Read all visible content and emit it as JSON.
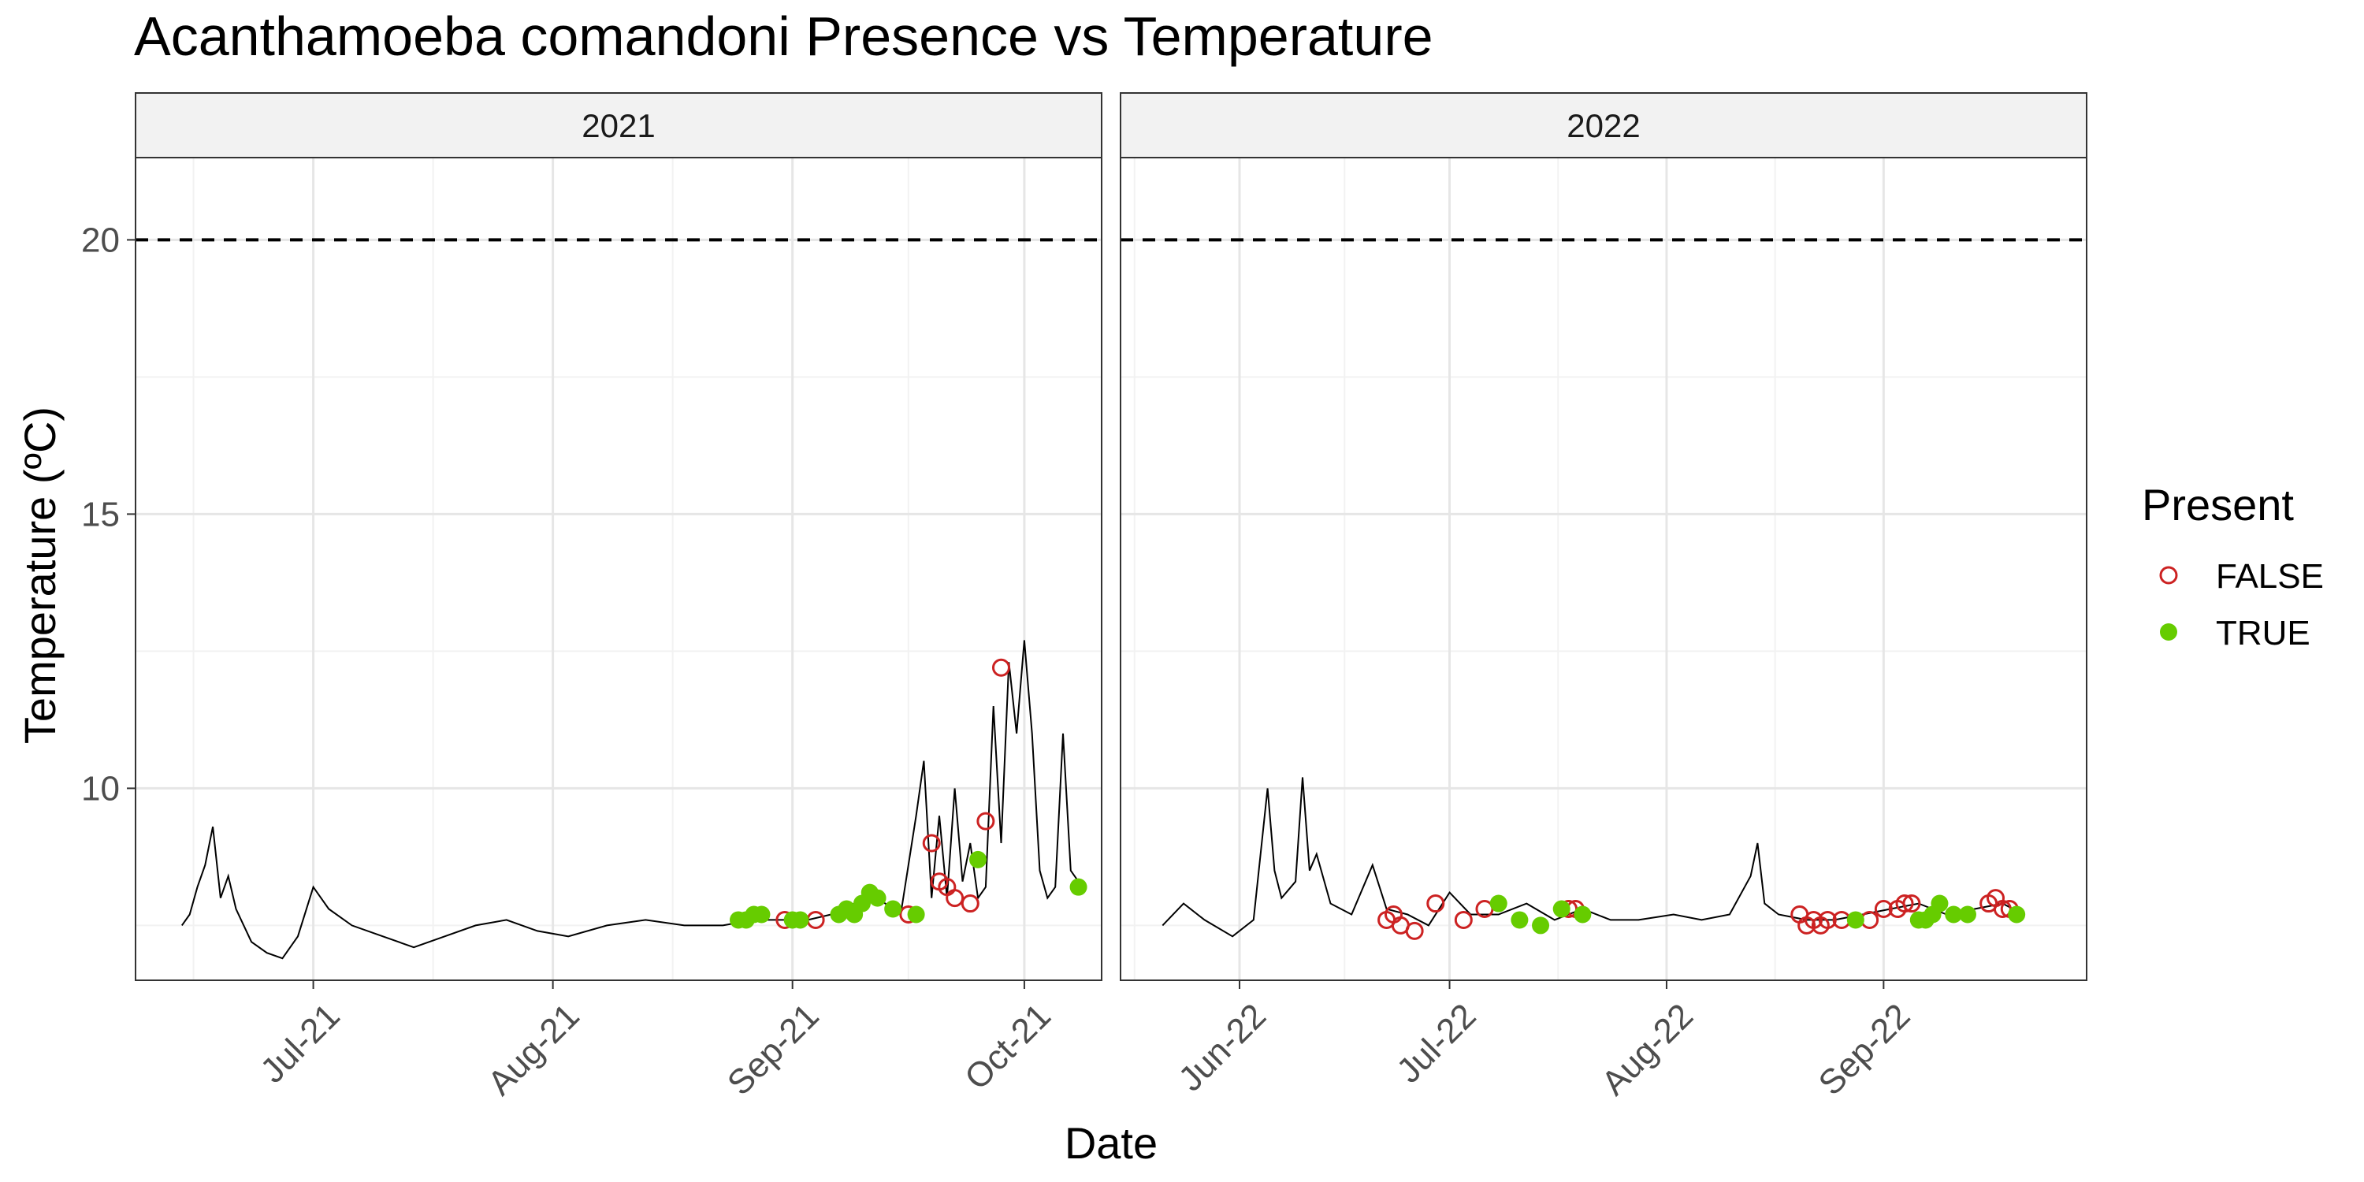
{
  "chart_data": {
    "type": "scatter",
    "title": "Acanthamoeba comandoni Presence vs Temperature",
    "xlabel": "Date",
    "ylabel": "Temperature (ºC)",
    "ylim": [
      6.5,
      21.5
    ],
    "y_ticks": [
      10,
      15,
      20
    ],
    "reference_line": {
      "y": 20,
      "style": "dashed"
    },
    "grid": true,
    "legend": {
      "title": "Present",
      "position": "right",
      "entries": [
        {
          "label": "FALSE",
          "marker": "open-circle",
          "color": "#CC2222"
        },
        {
          "label": "TRUE",
          "marker": "filled-circle",
          "color": "#66CC00"
        }
      ]
    },
    "panels": [
      {
        "facet_label": "2021",
        "xlim": [
          "2021-06-08",
          "2021-10-11"
        ],
        "x_ticks": [
          {
            "date": "2021-07-01",
            "label": "Jul-21"
          },
          {
            "date": "2021-08-01",
            "label": "Aug-21"
          },
          {
            "date": "2021-09-01",
            "label": "Sep-21"
          },
          {
            "date": "2021-10-01",
            "label": "Oct-21"
          }
        ],
        "temperature_series": [
          [
            "2021-06-14",
            7.5
          ],
          [
            "2021-06-15",
            7.7
          ],
          [
            "2021-06-16",
            8.2
          ],
          [
            "2021-06-17",
            8.6
          ],
          [
            "2021-06-18",
            9.3
          ],
          [
            "2021-06-19",
            8.0
          ],
          [
            "2021-06-20",
            8.4
          ],
          [
            "2021-06-21",
            7.8
          ],
          [
            "2021-06-22",
            7.5
          ],
          [
            "2021-06-23",
            7.2
          ],
          [
            "2021-06-25",
            7.0
          ],
          [
            "2021-06-27",
            6.9
          ],
          [
            "2021-06-29",
            7.3
          ],
          [
            "2021-07-01",
            8.2
          ],
          [
            "2021-07-03",
            7.8
          ],
          [
            "2021-07-06",
            7.5
          ],
          [
            "2021-07-10",
            7.3
          ],
          [
            "2021-07-14",
            7.1
          ],
          [
            "2021-07-18",
            7.3
          ],
          [
            "2021-07-22",
            7.5
          ],
          [
            "2021-07-26",
            7.6
          ],
          [
            "2021-07-30",
            7.4
          ],
          [
            "2021-08-03",
            7.3
          ],
          [
            "2021-08-08",
            7.5
          ],
          [
            "2021-08-13",
            7.6
          ],
          [
            "2021-08-18",
            7.5
          ],
          [
            "2021-08-23",
            7.5
          ],
          [
            "2021-08-27",
            7.6
          ],
          [
            "2021-08-31",
            7.6
          ],
          [
            "2021-09-03",
            7.6
          ],
          [
            "2021-09-06",
            7.7
          ],
          [
            "2021-09-09",
            7.9
          ],
          [
            "2021-09-12",
            8.0
          ],
          [
            "2021-09-15",
            7.7
          ],
          [
            "2021-09-17",
            9.5
          ],
          [
            "2021-09-18",
            10.5
          ],
          [
            "2021-09-19",
            8.0
          ],
          [
            "2021-09-20",
            9.5
          ],
          [
            "2021-09-21",
            8.0
          ],
          [
            "2021-09-22",
            10.0
          ],
          [
            "2021-09-23",
            8.3
          ],
          [
            "2021-09-24",
            9.0
          ],
          [
            "2021-09-25",
            8.0
          ],
          [
            "2021-09-26",
            8.2
          ],
          [
            "2021-09-27",
            11.5
          ],
          [
            "2021-09-28",
            9.0
          ],
          [
            "2021-09-29",
            12.3
          ],
          [
            "2021-09-30",
            11.0
          ],
          [
            "2021-10-01",
            12.7
          ],
          [
            "2021-10-02",
            11.0
          ],
          [
            "2021-10-03",
            8.5
          ],
          [
            "2021-10-04",
            8.0
          ],
          [
            "2021-10-05",
            8.2
          ],
          [
            "2021-10-06",
            11.0
          ],
          [
            "2021-10-07",
            8.5
          ],
          [
            "2021-10-08",
            8.3
          ]
        ],
        "points_false": [
          [
            "2021-08-31",
            7.6
          ],
          [
            "2021-09-04",
            7.6
          ],
          [
            "2021-09-16",
            7.7
          ],
          [
            "2021-09-19",
            9.0
          ],
          [
            "2021-09-20",
            8.3
          ],
          [
            "2021-09-21",
            8.2
          ],
          [
            "2021-09-22",
            8.0
          ],
          [
            "2021-09-24",
            7.9
          ],
          [
            "2021-09-26",
            9.4
          ],
          [
            "2021-09-28",
            12.2
          ]
        ],
        "points_true": [
          [
            "2021-08-25",
            7.6
          ],
          [
            "2021-08-26",
            7.6
          ],
          [
            "2021-08-27",
            7.7
          ],
          [
            "2021-08-28",
            7.7
          ],
          [
            "2021-09-01",
            7.6
          ],
          [
            "2021-09-02",
            7.6
          ],
          [
            "2021-09-07",
            7.7
          ],
          [
            "2021-09-08",
            7.8
          ],
          [
            "2021-09-09",
            7.7
          ],
          [
            "2021-09-10",
            7.9
          ],
          [
            "2021-09-11",
            8.1
          ],
          [
            "2021-09-12",
            8.0
          ],
          [
            "2021-09-14",
            7.8
          ],
          [
            "2021-09-17",
            7.7
          ],
          [
            "2021-09-25",
            8.7
          ],
          [
            "2021-10-08",
            8.2
          ]
        ]
      },
      {
        "facet_label": "2022",
        "xlim": [
          "2022-05-15",
          "2022-09-30"
        ],
        "x_ticks": [
          {
            "date": "2022-06-01",
            "label": "Jun-22"
          },
          {
            "date": "2022-07-01",
            "label": "Jul-22"
          },
          {
            "date": "2022-08-01",
            "label": "Aug-22"
          },
          {
            "date": "2022-09-01",
            "label": "Sep-22"
          }
        ],
        "temperature_series": [
          [
            "2022-05-21",
            7.5
          ],
          [
            "2022-05-24",
            7.9
          ],
          [
            "2022-05-27",
            7.6
          ],
          [
            "2022-05-31",
            7.3
          ],
          [
            "2022-06-03",
            7.6
          ],
          [
            "2022-06-05",
            10.0
          ],
          [
            "2022-06-06",
            8.5
          ],
          [
            "2022-06-07",
            8.0
          ],
          [
            "2022-06-09",
            8.3
          ],
          [
            "2022-06-10",
            10.2
          ],
          [
            "2022-06-11",
            8.5
          ],
          [
            "2022-06-12",
            8.8
          ],
          [
            "2022-06-14",
            7.9
          ],
          [
            "2022-06-17",
            7.7
          ],
          [
            "2022-06-20",
            8.6
          ],
          [
            "2022-06-22",
            7.8
          ],
          [
            "2022-06-25",
            7.7
          ],
          [
            "2022-06-28",
            7.5
          ],
          [
            "2022-07-01",
            8.1
          ],
          [
            "2022-07-04",
            7.7
          ],
          [
            "2022-07-08",
            7.7
          ],
          [
            "2022-07-12",
            7.9
          ],
          [
            "2022-07-16",
            7.6
          ],
          [
            "2022-07-20",
            7.8
          ],
          [
            "2022-07-24",
            7.6
          ],
          [
            "2022-07-28",
            7.6
          ],
          [
            "2022-08-02",
            7.7
          ],
          [
            "2022-08-06",
            7.6
          ],
          [
            "2022-08-10",
            7.7
          ],
          [
            "2022-08-13",
            8.4
          ],
          [
            "2022-08-14",
            9.0
          ],
          [
            "2022-08-15",
            7.9
          ],
          [
            "2022-08-17",
            7.7
          ],
          [
            "2022-08-21",
            7.6
          ],
          [
            "2022-08-25",
            7.6
          ],
          [
            "2022-08-29",
            7.7
          ],
          [
            "2022-09-02",
            7.8
          ],
          [
            "2022-09-06",
            7.9
          ],
          [
            "2022-09-10",
            7.7
          ],
          [
            "2022-09-14",
            7.8
          ],
          [
            "2022-09-18",
            7.9
          ],
          [
            "2022-09-21",
            7.7
          ]
        ],
        "points_false": [
          [
            "2022-06-22",
            7.6
          ],
          [
            "2022-06-23",
            7.7
          ],
          [
            "2022-06-24",
            7.5
          ],
          [
            "2022-06-26",
            7.4
          ],
          [
            "2022-06-29",
            7.9
          ],
          [
            "2022-07-03",
            7.6
          ],
          [
            "2022-07-06",
            7.8
          ],
          [
            "2022-07-18",
            7.8
          ],
          [
            "2022-07-19",
            7.8
          ],
          [
            "2022-08-20",
            7.7
          ],
          [
            "2022-08-21",
            7.5
          ],
          [
            "2022-08-22",
            7.6
          ],
          [
            "2022-08-23",
            7.5
          ],
          [
            "2022-08-24",
            7.6
          ],
          [
            "2022-08-26",
            7.6
          ],
          [
            "2022-08-30",
            7.6
          ],
          [
            "2022-09-01",
            7.8
          ],
          [
            "2022-09-03",
            7.8
          ],
          [
            "2022-09-04",
            7.9
          ],
          [
            "2022-09-05",
            7.9
          ],
          [
            "2022-09-16",
            7.9
          ],
          [
            "2022-09-17",
            8.0
          ],
          [
            "2022-09-18",
            7.8
          ],
          [
            "2022-09-19",
            7.8
          ]
        ],
        "points_true": [
          [
            "2022-07-08",
            7.9
          ],
          [
            "2022-07-11",
            7.6
          ],
          [
            "2022-07-14",
            7.5
          ],
          [
            "2022-07-17",
            7.8
          ],
          [
            "2022-07-20",
            7.7
          ],
          [
            "2022-08-28",
            7.6
          ],
          [
            "2022-09-06",
            7.6
          ],
          [
            "2022-09-07",
            7.6
          ],
          [
            "2022-09-08",
            7.7
          ],
          [
            "2022-09-09",
            7.9
          ],
          [
            "2022-09-11",
            7.7
          ],
          [
            "2022-09-13",
            7.7
          ],
          [
            "2022-09-20",
            7.7
          ]
        ]
      }
    ]
  }
}
